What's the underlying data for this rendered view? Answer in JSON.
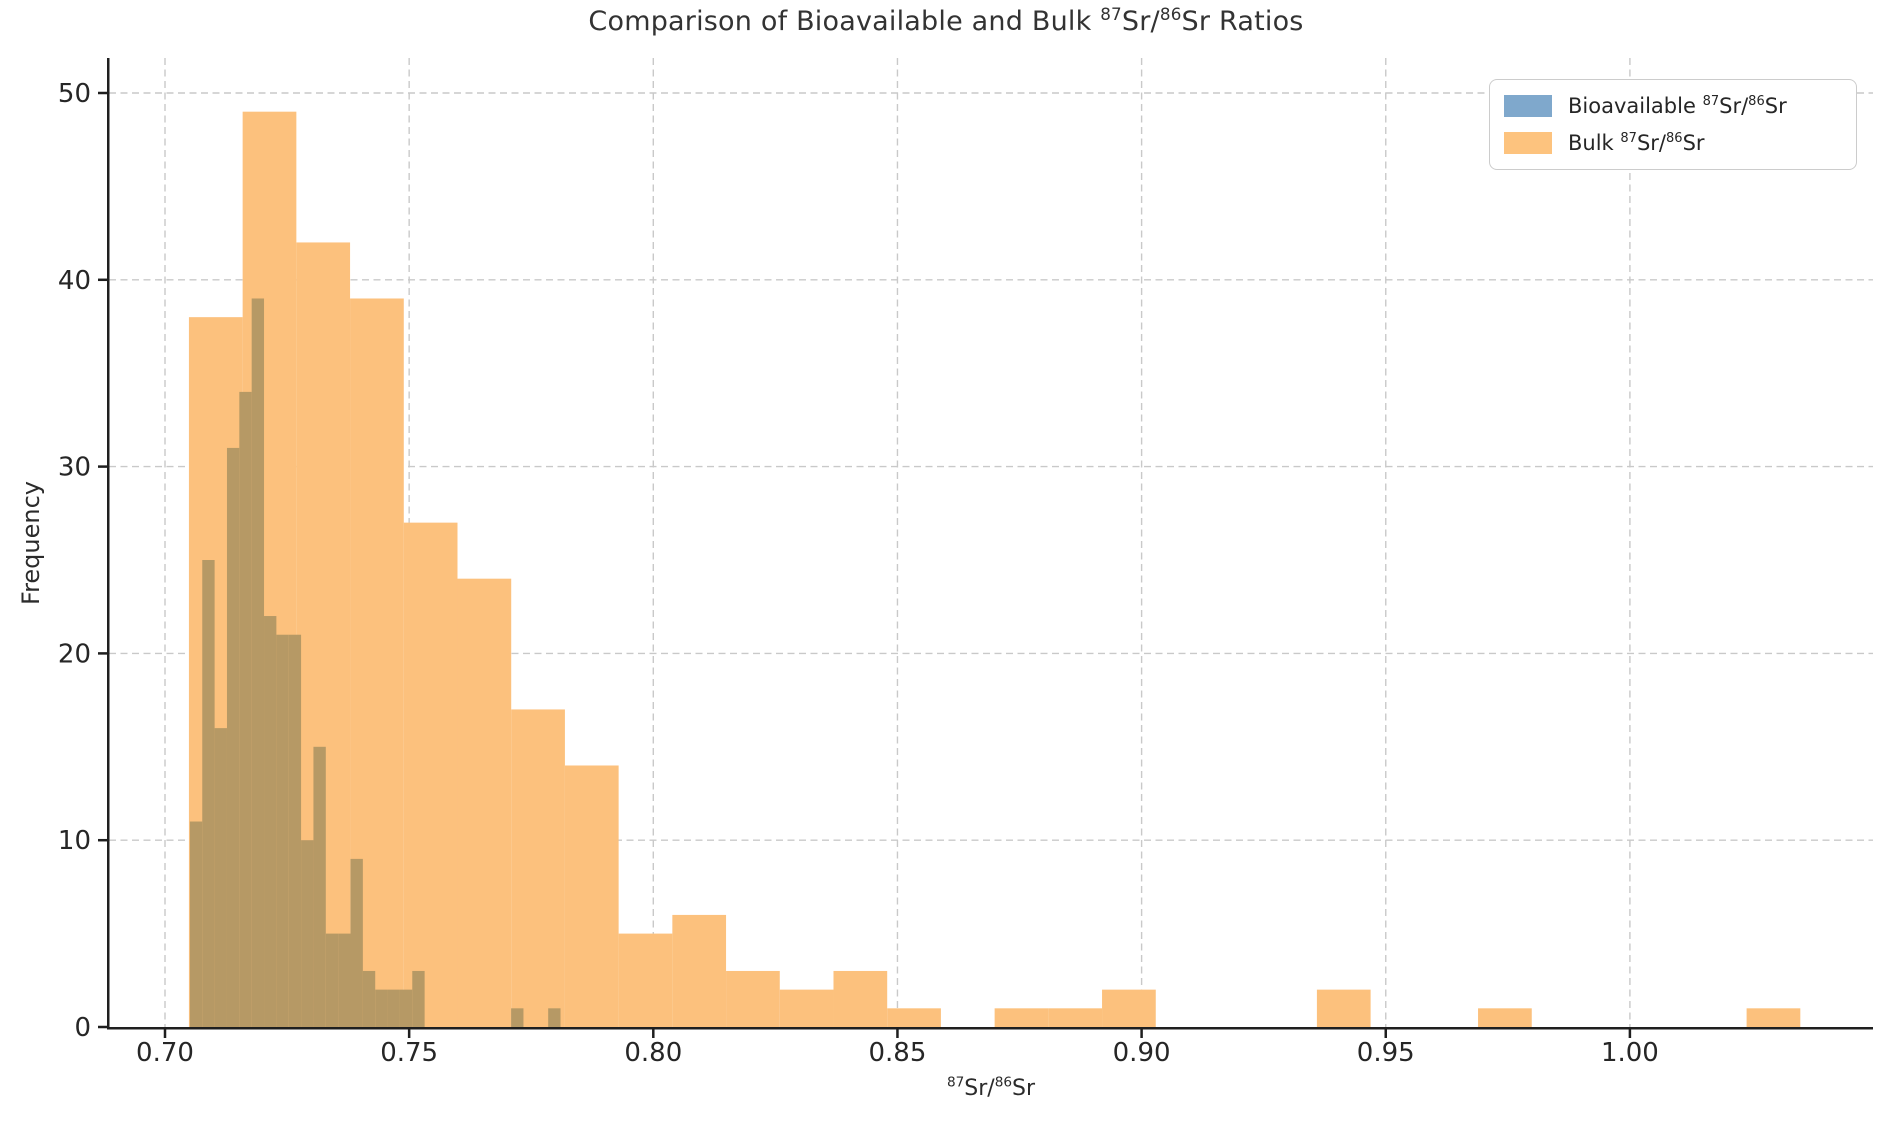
{
  "chart_data": {
    "type": "histogram",
    "title": "Comparison of Bioavailable and Bulk ^{87}Sr/^{86}Sr Ratios",
    "xlabel": "^{87}Sr/^{86}Sr",
    "ylabel": "Frequency",
    "xlim": [
      0.6885,
      1.0498
    ],
    "ylim": [
      0,
      51.8
    ],
    "grid": true,
    "grid_style": "dashed",
    "legend_position": "upper right",
    "x_tick_values": [
      0.7,
      0.75,
      0.8,
      0.85,
      0.9,
      0.95,
      1.0
    ],
    "x_tick_labels": [
      "0.70",
      "0.75",
      "0.80",
      "0.85",
      "0.90",
      "0.95",
      "1.00"
    ],
    "y_tick_values": [
      0,
      10,
      20,
      30,
      40,
      50
    ],
    "y_tick_labels": [
      "0",
      "10",
      "20",
      "30",
      "40",
      "50"
    ],
    "series": [
      {
        "name": "Bioavailable ^{87}Sr/^{86}Sr",
        "legend_color": "#7fa8cc",
        "rendered_color": "#b69965",
        "bin_start": 0.7051,
        "bin_width": 0.00253,
        "counts": [
          11,
          25,
          16,
          31,
          34,
          39,
          22,
          21,
          21,
          10,
          15,
          5,
          5,
          9,
          3,
          2,
          2,
          2,
          3,
          0,
          0,
          0,
          0,
          0,
          0,
          0,
          1,
          0,
          0,
          1
        ]
      },
      {
        "name": "Bulk ^{87}Sr/^{86}Sr",
        "legend_color": "#fdc37e",
        "rendered_color": "#fcc17d",
        "bin_start": 0.7049,
        "bin_width": 0.011,
        "counts": [
          38,
          49,
          42,
          39,
          27,
          24,
          17,
          14,
          5,
          6,
          3,
          2,
          3,
          1,
          0,
          1,
          1,
          2,
          0,
          0,
          0,
          2,
          0,
          0,
          1,
          0,
          0,
          0,
          0,
          1
        ]
      }
    ],
    "colors": {
      "grid": "#c9c9c9",
      "spine": "#1f1f1f",
      "tick_text": "#262626",
      "title_text": "#333333"
    }
  }
}
